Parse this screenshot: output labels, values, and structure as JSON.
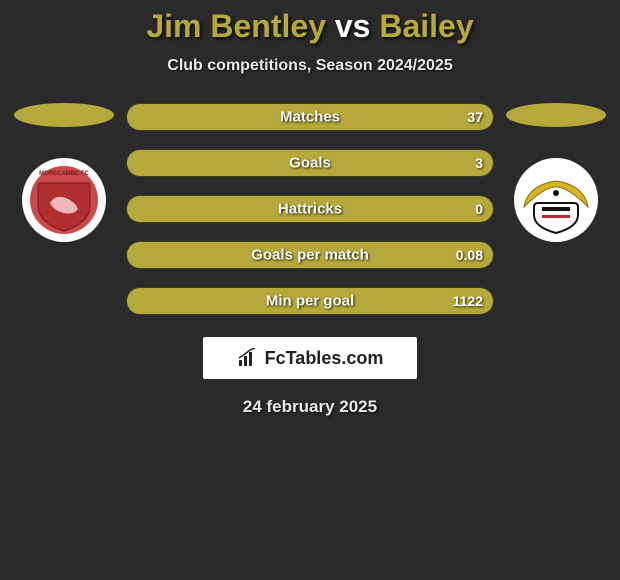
{
  "title": {
    "player1": "Jim Bentley",
    "vs": "vs",
    "player2": "Bailey",
    "player1_color": "#b4a93a",
    "player2_color": "#b4a93a"
  },
  "subtitle": "Club competitions, Season 2024/2025",
  "player1": {
    "disc_color": "#b4a93a",
    "badge_bg": "#ffffff",
    "shield_ring": "#c94a4a",
    "shield_fill": "#b12e2e",
    "shield_text": "MORECAMBE FC"
  },
  "player2": {
    "disc_color": "#b4a93a",
    "badge_bg": "#ffffff",
    "bird_color": "#d6b320",
    "shield_fill": "#ffffff",
    "shield_border": "#111111"
  },
  "bars": {
    "bg_color": "#545a2c",
    "fill_left_color": "#b4a93a",
    "fill_right_color": "#b4a93a",
    "rows": [
      {
        "label": "Matches",
        "left": "",
        "right": "37",
        "left_pct": 0,
        "right_pct": 100
      },
      {
        "label": "Goals",
        "left": "",
        "right": "3",
        "left_pct": 0,
        "right_pct": 100
      },
      {
        "label": "Hattricks",
        "left": "",
        "right": "0",
        "left_pct": 0,
        "right_pct": 100
      },
      {
        "label": "Goals per match",
        "left": "",
        "right": "0.08",
        "left_pct": 0,
        "right_pct": 100
      },
      {
        "label": "Min per goal",
        "left": "",
        "right": "1122",
        "left_pct": 0,
        "right_pct": 100
      }
    ]
  },
  "logo": {
    "text": "FcTables.com",
    "icon_color": "#222222",
    "box_bg": "#ffffff"
  },
  "date": "24 february 2025",
  "colors": {
    "page_bg": "#2a2a2a"
  }
}
